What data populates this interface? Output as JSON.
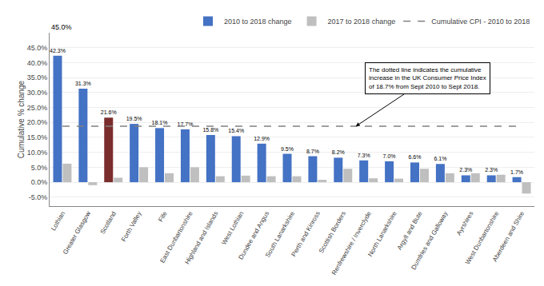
{
  "chart_data": {
    "type": "bar",
    "ylabel": "Cumulative % change",
    "categories": [
      "Lothian",
      "Greater Glasgow",
      "Scotland",
      "Forth Valley",
      "Fife",
      "East Dunbartonshire",
      "Highland and Islands",
      "West Lothian",
      "Dundee and Angus",
      "South Lanarkshire",
      "Perth and Kinross",
      "Scottish Borders",
      "Renfrewshire / Inverclyde",
      "North Lanarkshire",
      "Argyll and Bute",
      "Dumfries and Galloway",
      "Ayrshires",
      "West Dunbartonshire",
      "Aberdeen and Shire"
    ],
    "series": [
      {
        "name": "2010 to 2018 change",
        "colors": [
          "#4472C4",
          "#4472C4",
          "#7B2D2D",
          "#4472C4",
          "#4472C4",
          "#4472C4",
          "#4472C4",
          "#4472C4",
          "#4472C4",
          "#4472C4",
          "#4472C4",
          "#4472C4",
          "#4472C4",
          "#4472C4",
          "#4472C4",
          "#4472C4",
          "#4472C4",
          "#4472C4",
          "#4472C4"
        ],
        "values": [
          42.3,
          31.3,
          21.6,
          19.5,
          18.1,
          17.7,
          15.8,
          15.4,
          12.9,
          9.5,
          8.7,
          8.2,
          7.3,
          7.0,
          6.6,
          6.1,
          2.3,
          2.3,
          1.7
        ],
        "value_labels": [
          "42.3%",
          "31.3%",
          "21.6%",
          "19.5%",
          "18.1%",
          "17.7%",
          "15.8%",
          "15.4%",
          "12.9%",
          "9.5%",
          "8.7%",
          "8.2%",
          "7.3%",
          "7.0%",
          "6.6%",
          "6.1%",
          "2.3%",
          "2.3%",
          "1.7%"
        ]
      },
      {
        "name": "2017 to 2018 change",
        "color": "#BFBFBF",
        "values": [
          6.2,
          -1.0,
          1.5,
          5.0,
          3.0,
          5.0,
          2.0,
          2.2,
          2.0,
          2.0,
          0.8,
          4.5,
          1.3,
          1.2,
          4.5,
          3.0,
          3.0,
          2.5,
          -3.8
        ]
      },
      {
        "name": "Cumulative CPI - 2010 to 2018",
        "type": "line",
        "line_style": "dashed",
        "color": "#808080",
        "values": [
          18.7,
          18.7,
          18.7,
          18.7,
          18.7,
          18.7,
          18.7,
          18.7,
          18.7,
          18.7,
          18.7,
          18.7,
          18.7,
          18.7,
          18.7,
          18.7,
          18.7,
          18.7,
          18.7
        ]
      }
    ],
    "ylim": [
      -8.0,
      50.0
    ],
    "yticks": [
      {
        "value": -5.0,
        "label": "-5.0%"
      },
      {
        "value": 0.0,
        "label": "0.0%"
      },
      {
        "value": 5.0,
        "label": "5.0%"
      },
      {
        "value": 10.0,
        "label": "10.0%"
      },
      {
        "value": 15.0,
        "label": "15.0%"
      },
      {
        "value": 20.0,
        "label": "20.0%"
      },
      {
        "value": 25.0,
        "label": "25.0%"
      },
      {
        "value": 30.0,
        "label": "30.0%"
      },
      {
        "value": 35.0,
        "label": "35.0%"
      },
      {
        "value": 40.0,
        "label": "40.0%"
      },
      {
        "value": 45.0,
        "label": "45.0%"
      }
    ],
    "grid": true,
    "data_labels": true,
    "legend": "upper right",
    "annotations": [
      {
        "text": "The dotted line indicates the cumulative\nincrease in the UK Consumer Price Index\nof 18.7% from Sept 2010 to Sept 2018."
      },
      {
        "text": "45.0%"
      }
    ]
  }
}
